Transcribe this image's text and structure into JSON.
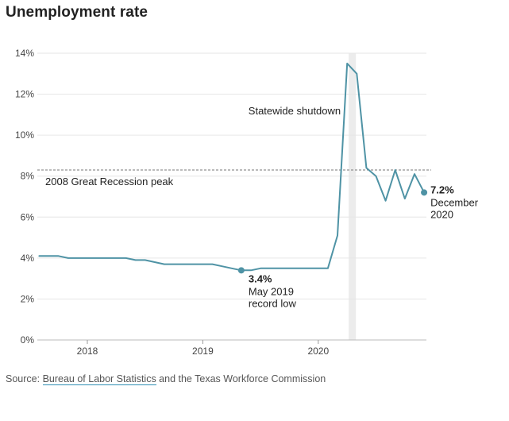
{
  "chart_data": {
    "type": "line",
    "title": "Unemployment rate",
    "xlabel": "",
    "ylabel": "",
    "x_ticks": [
      "2018",
      "2019",
      "2020"
    ],
    "y_ticks": [
      "0%",
      "2%",
      "4%",
      "6%",
      "8%",
      "10%",
      "12%",
      "14%"
    ],
    "ylim": [
      0,
      14
    ],
    "xlim": [
      "2017-08",
      "2020-12"
    ],
    "grid": true,
    "series": [
      {
        "x": [
          "2017-08",
          "2017-09",
          "2017-10",
          "2017-11",
          "2017-12",
          "2018-01",
          "2018-02",
          "2018-03",
          "2018-04",
          "2018-05",
          "2018-06",
          "2018-07",
          "2018-08",
          "2018-09",
          "2018-10",
          "2018-11",
          "2018-12",
          "2019-01",
          "2019-02",
          "2019-03",
          "2019-04",
          "2019-05",
          "2019-06",
          "2019-07",
          "2019-08",
          "2019-09",
          "2019-10",
          "2019-11",
          "2019-12",
          "2020-01",
          "2020-02",
          "2020-03",
          "2020-04",
          "2020-05",
          "2020-06",
          "2020-07",
          "2020-08",
          "2020-09",
          "2020-10",
          "2020-11",
          "2020-12"
        ],
        "values": [
          4.1,
          4.1,
          4.1,
          4.0,
          4.0,
          4.0,
          4.0,
          4.0,
          4.0,
          4.0,
          3.9,
          3.9,
          3.8,
          3.7,
          3.7,
          3.7,
          3.7,
          3.7,
          3.7,
          3.6,
          3.5,
          3.4,
          3.4,
          3.5,
          3.5,
          3.5,
          3.5,
          3.5,
          3.5,
          3.5,
          3.5,
          5.1,
          13.5,
          13.0,
          8.4,
          8.0,
          6.8,
          8.3,
          6.9,
          8.1,
          7.2
        ]
      }
    ],
    "reference_line": {
      "value": 8.3,
      "label": "2008 Great Recession peak"
    },
    "shaded_period": {
      "from": "2020-04",
      "to": "2020-05",
      "label": "Statewide shutdown"
    },
    "annotations": [
      {
        "x": "2019-05",
        "value_label": "3.4%",
        "lines": [
          "May 2019",
          "record low"
        ]
      },
      {
        "x": "2020-12",
        "value_label": "7.2%",
        "lines": [
          "December",
          "2020"
        ]
      }
    ],
    "colors": {
      "line": "#4f93a5",
      "grid": "#e6e6e6",
      "reference": "#777777",
      "shade": "#ececec"
    }
  },
  "source": {
    "prefix": "Source: ",
    "link_text": "Bureau of Labor Statistics",
    "suffix": " and the Texas Workforce Commission"
  }
}
